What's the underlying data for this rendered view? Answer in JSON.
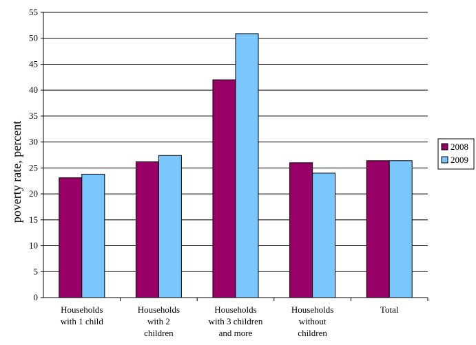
{
  "chart_data": {
    "type": "bar",
    "title": "",
    "xlabel": "",
    "ylabel": "poverty rate, percent",
    "ylim": [
      0,
      55
    ],
    "ytick_step": 5,
    "grid": true,
    "legend_position": "right",
    "categories": [
      [
        "Households",
        "with 1 child"
      ],
      [
        "Households",
        "with 2",
        "children"
      ],
      [
        "Households",
        "with 3 children",
        "and more"
      ],
      [
        "Households",
        "without",
        "children"
      ],
      [
        "Total"
      ]
    ],
    "series": [
      {
        "name": "2008",
        "color": "#990066",
        "values": [
          23.1,
          26.2,
          42.0,
          26.0,
          26.4
        ]
      },
      {
        "name": "2009",
        "color": "#7ac6ff",
        "values": [
          23.8,
          27.4,
          50.9,
          24.0,
          26.4
        ]
      }
    ]
  }
}
